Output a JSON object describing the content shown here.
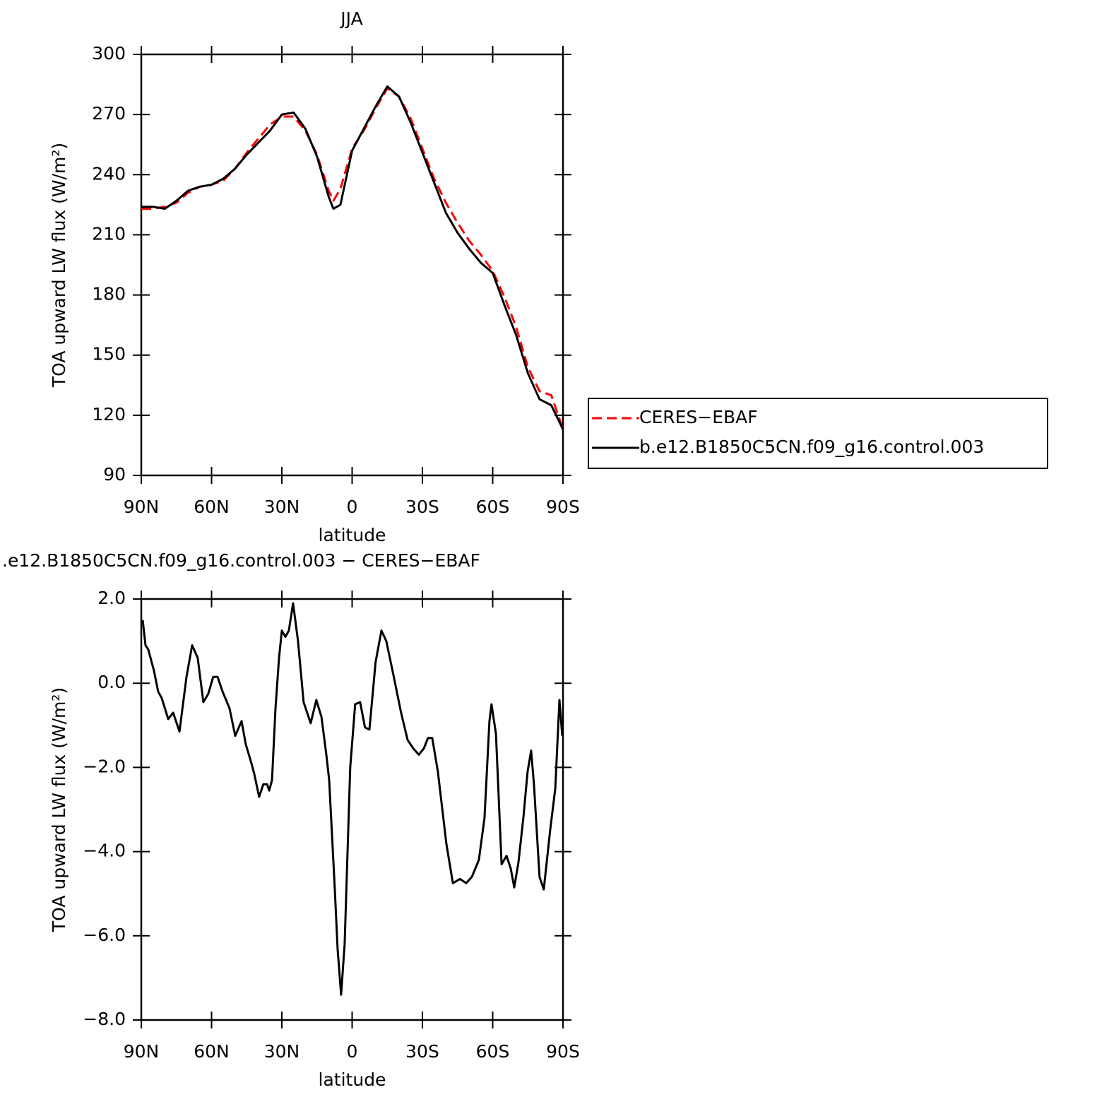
{
  "chart_data": [
    {
      "type": "line",
      "title": "JJA",
      "xlabel": "latitude",
      "ylabel": "TOA upward LW flux (W/m²)",
      "x": [
        90,
        85,
        80,
        75,
        70,
        65,
        60,
        55,
        50,
        45,
        40,
        35,
        30,
        25,
        20,
        15,
        10,
        8,
        5,
        0,
        -5,
        -10,
        -15,
        -20,
        -25,
        -30,
        -35,
        -40,
        -45,
        -50,
        -55,
        -60,
        -65,
        -70,
        -75,
        -80,
        -85,
        -90
      ],
      "series": [
        {
          "name": "CERES−EBAF",
          "color": "#ff0000",
          "linestyle": "dashed",
          "values": [
            223,
            223,
            224,
            226,
            231,
            234,
            235,
            237,
            243,
            251,
            258,
            265,
            269,
            269,
            262,
            250,
            232,
            227,
            233,
            253,
            262,
            273,
            283,
            279,
            268,
            253,
            238,
            226,
            216,
            207,
            200,
            192,
            179,
            164,
            144,
            132,
            130,
            113
          ]
        },
        {
          "name": "b.e12.B1850C5CN.f09_g16.control.003",
          "color": "#000000",
          "linestyle": "solid",
          "values": [
            224,
            224,
            223,
            227,
            232,
            234,
            235,
            238,
            243,
            250,
            256,
            262,
            270,
            271,
            263,
            249,
            229,
            223,
            225,
            252,
            263,
            274,
            284,
            279,
            266,
            251,
            236,
            221,
            211,
            203,
            196,
            191,
            175,
            160,
            141,
            128,
            125,
            113
          ]
        }
      ],
      "xlim": [
        90,
        -90
      ],
      "xticks": [
        {
          "value": 90,
          "label": "90N"
        },
        {
          "value": 60,
          "label": "60N"
        },
        {
          "value": 30,
          "label": "30N"
        },
        0,
        {
          "value": -30,
          "label": "30S"
        },
        {
          "value": -60,
          "label": "60S"
        },
        {
          "value": -90,
          "label": "90S"
        }
      ],
      "ylim": [
        90,
        300
      ],
      "yticks": [
        90,
        120,
        150,
        180,
        210,
        240,
        270,
        300
      ],
      "legend": "outside-right"
    },
    {
      "type": "line",
      "title": ".e12.B1850C5CN.f09_g16.control.003 − CERES−EBAF",
      "xlabel": "latitude",
      "ylabel": "TOA upward LW flux (W/m²)",
      "x": [
        89.4,
        88.2,
        87,
        84.6,
        82.8,
        81.3,
        78.5,
        76.4,
        73.7,
        70.7,
        68.3,
        65.9,
        63.5,
        61.4,
        59.3,
        57.4,
        55.3,
        52.3,
        49.9,
        47.2,
        45.4,
        43,
        41.8,
        39.7,
        37.9,
        36.3,
        35.4,
        34.2,
        32.7,
        31.2,
        30,
        28.5,
        27,
        25.2,
        23.1,
        20.7,
        17.7,
        15.3,
        13.1,
        11,
        9.8,
        7.4,
        6.2,
        4.7,
        3.2,
        0.8,
        -1.3,
        -3.4,
        -5.5,
        -7.4,
        -10,
        -12.5,
        -14.6,
        -17.6,
        -20.9,
        -23.7,
        -26.1,
        -28.5,
        -30.6,
        -32.4,
        -34.2,
        -36.6,
        -40.2,
        -43,
        -46,
        -48.7,
        -51.1,
        -54.1,
        -56.5,
        -58.6,
        -59.5,
        -61.4,
        -63.8,
        -65.9,
        -67.7,
        -69.2,
        -71,
        -73.1,
        -74.9,
        -76.4,
        -77.6,
        -80,
        -81.8,
        -84.5,
        -86.7,
        -88.5,
        -89.7
      ],
      "values": [
        1.5,
        0.9,
        0.8,
        0.3,
        -0.2,
        -0.35,
        -0.85,
        -0.7,
        -1.15,
        0.15,
        0.9,
        0.6,
        -0.45,
        -0.25,
        0.15,
        0.15,
        -0.2,
        -0.6,
        -1.25,
        -0.9,
        -1.45,
        -1.9,
        -2.15,
        -2.7,
        -2.4,
        -2.4,
        -2.55,
        -2.3,
        -0.6,
        0.6,
        1.25,
        1.1,
        1.25,
        1.9,
        1.0,
        -0.45,
        -0.95,
        -0.4,
        -0.8,
        -1.7,
        -2.3,
        -4.9,
        -6.3,
        -7.4,
        -6.2,
        -2.0,
        -0.5,
        -0.45,
        -1.05,
        -1.1,
        0.5,
        1.25,
        1.0,
        0.2,
        -0.7,
        -1.35,
        -1.55,
        -1.7,
        -1.55,
        -1.3,
        -1.3,
        -2.1,
        -3.8,
        -4.75,
        -4.65,
        -4.75,
        -4.6,
        -4.2,
        -3.2,
        -0.9,
        -0.5,
        -1.2,
        -4.3,
        -4.1,
        -4.4,
        -4.85,
        -4.25,
        -3.2,
        -2.1,
        -1.6,
        -2.4,
        -4.6,
        -4.9,
        -3.5,
        -2.5,
        -0.4,
        -1.25
      ],
      "color": "#000000",
      "xlim": [
        90,
        -90
      ],
      "xticks": [
        {
          "value": 90,
          "label": "90N"
        },
        {
          "value": 60,
          "label": "60N"
        },
        {
          "value": 30,
          "label": "30N"
        },
        0,
        {
          "value": -30,
          "label": "30S"
        },
        {
          "value": -60,
          "label": "60S"
        },
        {
          "value": -90,
          "label": "90S"
        }
      ],
      "ylim": [
        -8,
        2
      ],
      "yticks": [
        {
          "value": -8,
          "label": "−8.0"
        },
        {
          "value": -6,
          "label": "−6.0"
        },
        {
          "value": -4,
          "label": "−4.0"
        },
        {
          "value": -2,
          "label": "−2.0"
        },
        {
          "value": 0,
          "label": "0.0"
        },
        {
          "value": 2,
          "label": "2.0"
        }
      ]
    }
  ]
}
